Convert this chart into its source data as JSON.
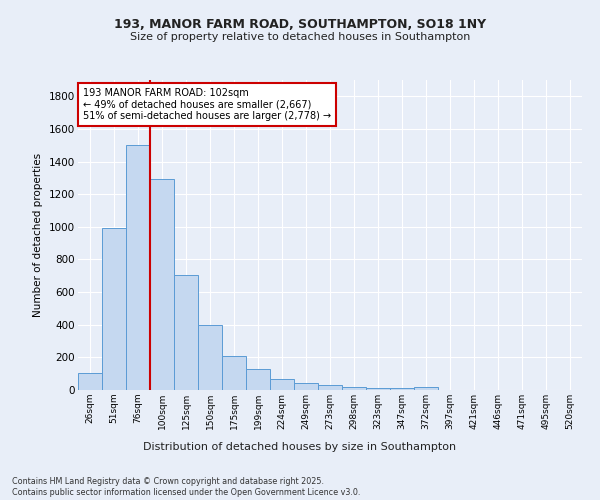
{
  "title1": "193, MANOR FARM ROAD, SOUTHAMPTON, SO18 1NY",
  "title2": "Size of property relative to detached houses in Southampton",
  "xlabel": "Distribution of detached houses by size in Southampton",
  "ylabel": "Number of detached properties",
  "categories": [
    "26sqm",
    "51sqm",
    "76sqm",
    "100sqm",
    "125sqm",
    "150sqm",
    "175sqm",
    "199sqm",
    "224sqm",
    "249sqm",
    "273sqm",
    "298sqm",
    "323sqm",
    "347sqm",
    "372sqm",
    "397sqm",
    "421sqm",
    "446sqm",
    "471sqm",
    "495sqm",
    "520sqm"
  ],
  "values": [
    105,
    990,
    1500,
    1295,
    705,
    400,
    210,
    130,
    70,
    42,
    30,
    20,
    15,
    10,
    20,
    0,
    0,
    0,
    0,
    0,
    0
  ],
  "bar_color": "#c5d8f0",
  "bar_edge_color": "#5b9bd5",
  "vline_x": 2.5,
  "vline_color": "#cc0000",
  "annotation_text": "193 MANOR FARM ROAD: 102sqm\n← 49% of detached houses are smaller (2,667)\n51% of semi-detached houses are larger (2,778) →",
  "annotation_box_color": "#cc0000",
  "bg_color": "#e8eef8",
  "plot_bg_color": "#e8eef8",
  "grid_color": "#ffffff",
  "footer": "Contains HM Land Registry data © Crown copyright and database right 2025.\nContains public sector information licensed under the Open Government Licence v3.0.",
  "ylim": [
    0,
    1900
  ],
  "yticks": [
    0,
    200,
    400,
    600,
    800,
    1000,
    1200,
    1400,
    1600,
    1800
  ]
}
